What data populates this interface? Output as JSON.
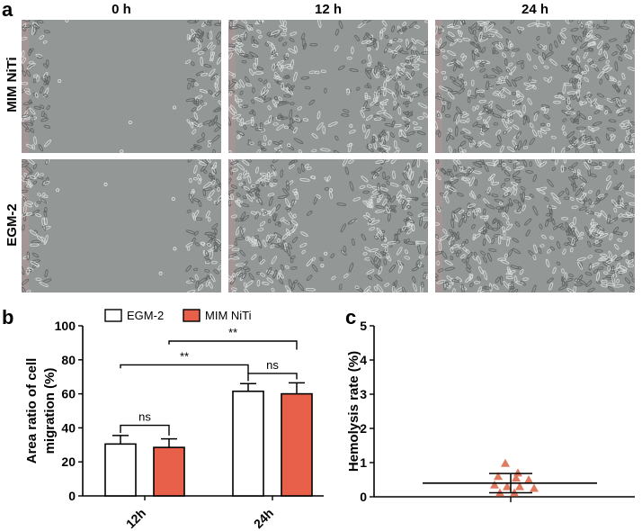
{
  "panel_a": {
    "letter": "a",
    "columns": [
      "0 h",
      "12 h",
      "24 h"
    ],
    "rows": [
      "MIM NiTi",
      "EGM-2"
    ]
  },
  "panel_b": {
    "letter": "b",
    "chart_data": {
      "type": "bar",
      "categories": [
        "12h",
        "24h"
      ],
      "series": [
        {
          "name": "EGM-2",
          "color": "#ffffff",
          "values": [
            30.5,
            61.5
          ],
          "errors": [
            5,
            4.5
          ]
        },
        {
          "name": "MIM NiTi",
          "color": "#e8604a",
          "values": [
            28.5,
            60
          ],
          "errors": [
            5,
            6.5
          ]
        }
      ],
      "ylabel": "Area ratio of cell migration (%)",
      "ylabel_lines": [
        "Area ratio of cell",
        "migration (%)"
      ],
      "ylim": [
        0,
        100
      ],
      "yticks": [
        0,
        20,
        40,
        60,
        80,
        100
      ],
      "annotations": [
        {
          "label": "ns",
          "between": "12h EGM-2 vs 12h MIM NiTi"
        },
        {
          "label": "ns",
          "between": "24h EGM-2 vs 24h MIM NiTi"
        },
        {
          "label": "**",
          "between": "12h EGM-2 vs 24h EGM-2"
        },
        {
          "label": "**",
          "between": "12h MIM NiTi vs 24h MIM NiTi"
        }
      ],
      "legend_position": "top"
    }
  },
  "panel_c": {
    "letter": "c",
    "chart_data": {
      "type": "scatter",
      "ylabel": "Hemolysis rate (%)",
      "ylim": [
        0,
        5
      ],
      "yticks": [
        0,
        1,
        2,
        3,
        4,
        5
      ],
      "points": [
        0.98,
        0.7,
        0.6,
        0.55,
        0.5,
        0.35,
        0.3,
        0.3,
        0.25,
        0.12,
        0.12
      ],
      "marker_color": "#e07a5f",
      "mean": 0.4,
      "sd_upper": 0.68,
      "sd_lower": 0.12
    }
  }
}
